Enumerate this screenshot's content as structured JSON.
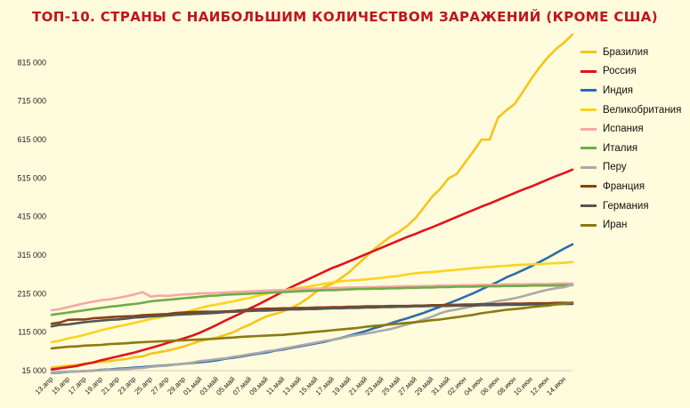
{
  "chart_data": {
    "type": "line",
    "title": "ТОП-10. СТРАНЫ С НАИБОЛЬШИМ КОЛИЧЕСТВОМ ЗАРАЖЕНИЙ (КРОМЕ США)",
    "xlabel": "",
    "ylabel": "",
    "ylim": [
      15000,
      885000
    ],
    "yticks": [
      15000,
      115000,
      215000,
      315000,
      415000,
      515000,
      615000,
      715000,
      815000
    ],
    "ytick_labels": [
      "15 000",
      "115 000",
      "215 000",
      "315 000",
      "415 000",
      "515 000",
      "615 000",
      "715 000",
      "815 000"
    ],
    "grid": false,
    "legend_position": "right",
    "x": [
      "13.апр",
      "14.апр",
      "15.апр",
      "16.апр",
      "17.апр",
      "18.апр",
      "19.апр",
      "20.апр",
      "21.апр",
      "22.апр",
      "23.апр",
      "24.апр",
      "25.апр",
      "26.апр",
      "27.апр",
      "28.апр",
      "29.апр",
      "30.апр",
      "01.май",
      "02.май",
      "03.май",
      "04.май",
      "05.май",
      "06.май",
      "07.май",
      "08.май",
      "09.май",
      "10.май",
      "11.май",
      "12.май",
      "13.май",
      "14.май",
      "15.май",
      "16.май",
      "17.май",
      "18.май",
      "19.май",
      "20.май",
      "21.май",
      "22.май",
      "23.май",
      "24.май",
      "25.май",
      "26.май",
      "27.май",
      "28.май",
      "29.май",
      "30.май",
      "31.май",
      "01.июн",
      "02.июн",
      "03.июн",
      "04.июн",
      "05.июн",
      "06.июн",
      "07.июн",
      "08.июн",
      "09.июн",
      "10.июн",
      "11.июн",
      "12.июн",
      "13.июн",
      "14.июн",
      "15.июн"
    ],
    "x_tick_labels": [
      "13.апр",
      "15.апр",
      "17.апр",
      "19.апр",
      "21.апр",
      "23.апр",
      "25.апр",
      "27.апр",
      "29.апр",
      "01.май",
      "03.май",
      "05.май",
      "07.май",
      "09.май",
      "11.май",
      "13.май",
      "15.май",
      "17.май",
      "19.май",
      "21.май",
      "23.май",
      "25.май",
      "27.май",
      "29.май",
      "31.май",
      "02.июн",
      "04.июн",
      "06.июн",
      "08.июн",
      "10.июн",
      "12.июн",
      "14.июн"
    ],
    "series": [
      {
        "name": "Бразилия",
        "color": "#f5c518",
        "values": [
          23000,
          25000,
          28000,
          30000,
          33000,
          36000,
          38000,
          40000,
          43000,
          45000,
          50000,
          52000,
          59000,
          63000,
          67000,
          72000,
          78000,
          85000,
          92000,
          97000,
          101000,
          108000,
          115000,
          126000,
          135000,
          146000,
          156000,
          162000,
          169000,
          178000,
          189000,
          203000,
          220000,
          233000,
          241000,
          255000,
          271000,
          291000,
          310000,
          330000,
          347000,
          363000,
          375000,
          391000,
          411000,
          438000,
          466000,
          487000,
          514000,
          526000,
          555000,
          584000,
          615000,
          615000,
          672000,
          691000,
          707000,
          739000,
          772000,
          802000,
          828000,
          850000,
          867000,
          888000
        ]
      },
      {
        "name": "Россия",
        "color": "#e0141b",
        "values": [
          18000,
          21000,
          24000,
          27000,
          32000,
          36000,
          42000,
          47000,
          52000,
          57000,
          62000,
          68000,
          74000,
          80000,
          87000,
          93000,
          99000,
          106000,
          114000,
          124000,
          134000,
          145000,
          155000,
          165000,
          177000,
          187000,
          198000,
          209000,
          221000,
          232000,
          242000,
          252000,
          262000,
          272000,
          282000,
          290000,
          299000,
          308000,
          317000,
          326000,
          335000,
          344000,
          353000,
          362000,
          370000,
          379000,
          387000,
          396000,
          405000,
          414000,
          423000,
          432000,
          441000,
          449000,
          458000,
          467000,
          476000,
          485000,
          493000,
          502000,
          511000,
          520000,
          528000,
          537000
        ]
      },
      {
        "name": "Индия",
        "color": "#2b6cb0",
        "values": [
          9000,
          10000,
          12000,
          13000,
          14000,
          15000,
          17000,
          18000,
          20000,
          21000,
          23000,
          24000,
          26000,
          28000,
          29000,
          31000,
          33000,
          35000,
          37000,
          39000,
          42000,
          46000,
          49000,
          52000,
          56000,
          59000,
          62000,
          67000,
          70000,
          74000,
          78000,
          82000,
          86000,
          90000,
          95000,
          100000,
          106000,
          112000,
          118000,
          125000,
          131000,
          138000,
          145000,
          151000,
          158000,
          165000,
          173000,
          181000,
          190000,
          198000,
          207000,
          216000,
          226000,
          236000,
          246000,
          257000,
          266000,
          276000,
          286000,
          297000,
          308000,
          320000,
          332000,
          343000
        ]
      },
      {
        "name": "Великобритания",
        "color": "#ffd21f",
        "values": [
          89000,
          93000,
          99000,
          103000,
          108000,
          114000,
          120000,
          125000,
          130000,
          134000,
          139000,
          144000,
          149000,
          153000,
          158000,
          162000,
          166000,
          172000,
          178000,
          183000,
          187000,
          191000,
          195000,
          200000,
          204000,
          210000,
          215000,
          219000,
          223000,
          227000,
          230000,
          233000,
          237000,
          241000,
          244000,
          247000,
          249000,
          250000,
          252000,
          254000,
          256000,
          259000,
          261000,
          265000,
          268000,
          270000,
          271000,
          273000,
          275000,
          277000,
          279000,
          281000,
          283000,
          284000,
          286000,
          287000,
          289000,
          290000,
          291000,
          292000,
          293000,
          294000,
          295000,
          297000
        ]
      },
      {
        "name": "Испания",
        "color": "#f4a8a8",
        "values": [
          172000,
          175000,
          180000,
          185000,
          190000,
          194000,
          198000,
          200000,
          204000,
          208000,
          213000,
          219000,
          207000,
          210000,
          209000,
          211000,
          213000,
          214000,
          216000,
          216000,
          217000,
          218000,
          219000,
          220000,
          221000,
          222000,
          223000,
          224000,
          224000,
          225000,
          226000,
          227000,
          228000,
          229000,
          230000,
          230000,
          231000,
          231000,
          232000,
          232000,
          233000,
          233000,
          234000,
          234000,
          234000,
          235000,
          235000,
          236000,
          236000,
          236000,
          237000,
          237000,
          238000,
          238000,
          238000,
          239000,
          239000,
          239000,
          240000,
          240000,
          240000,
          241000,
          241000,
          241000
        ]
      },
      {
        "name": "Италия",
        "color": "#6fac46",
        "values": [
          160000,
          163000,
          166000,
          169000,
          172000,
          175000,
          178000,
          181000,
          183000,
          186000,
          188000,
          191000,
          195000,
          197000,
          199000,
          201000,
          203000,
          205000,
          207000,
          209000,
          210000,
          212000,
          213000,
          214000,
          215000,
          216000,
          217000,
          218000,
          219000,
          220000,
          221000,
          222000,
          223000,
          224000,
          224000,
          225000,
          226000,
          227000,
          227000,
          228000,
          228000,
          229000,
          229000,
          230000,
          230000,
          231000,
          231000,
          232000,
          232000,
          233000,
          233000,
          233000,
          234000,
          234000,
          234000,
          235000,
          235000,
          235000,
          236000,
          236000,
          236000,
          236000,
          237000,
          237000
        ]
      },
      {
        "name": "Перу",
        "color": "#a9a9a9",
        "values": [
          10000,
          11000,
          12000,
          13000,
          14000,
          15000,
          16000,
          17000,
          18000,
          19000,
          21000,
          22000,
          25000,
          27000,
          28000,
          31000,
          33000,
          36000,
          40000,
          42000,
          45000,
          47000,
          51000,
          54000,
          58000,
          61000,
          65000,
          68000,
          72000,
          76000,
          80000,
          84000,
          88000,
          92000,
          95000,
          99000,
          104000,
          108000,
          111000,
          115000,
          119000,
          123000,
          129000,
          135000,
          141000,
          148000,
          155000,
          164000,
          170000,
          174000,
          178000,
          183000,
          187000,
          191000,
          196000,
          199000,
          203000,
          208000,
          214000,
          220000,
          225000,
          229000,
          232000,
          238000
        ]
      },
      {
        "name": "Франция",
        "color": "#8b4012",
        "values": [
          137000,
          140000,
          147000,
          148000,
          148000,
          151000,
          152000,
          154000,
          155000,
          156000,
          157000,
          159000,
          160000,
          161000,
          162000,
          165000,
          166000,
          167000,
          168000,
          168000,
          168000,
          169000,
          170000,
          172000,
          174000,
          175000,
          176000,
          176000,
          177000,
          177000,
          178000,
          178000,
          179000,
          179000,
          180000,
          180000,
          181000,
          181000,
          182000,
          182000,
          182000,
          183000,
          183000,
          183000,
          184000,
          184000,
          185000,
          185000,
          186000,
          186000,
          187000,
          187000,
          188000,
          188000,
          188000,
          189000,
          189000,
          189000,
          190000,
          190000,
          190000,
          191000,
          191000,
          191000
        ]
      },
      {
        "name": "Германия",
        "color": "#555555",
        "values": [
          130000,
          134000,
          135000,
          138000,
          141000,
          143000,
          145000,
          147000,
          148000,
          150000,
          153000,
          154000,
          156000,
          157000,
          158000,
          160000,
          161000,
          162000,
          163000,
          164000,
          165000,
          167000,
          168000,
          169000,
          170000,
          171000,
          171000,
          172000,
          173000,
          174000,
          174000,
          175000,
          175000,
          176000,
          177000,
          177000,
          178000,
          178000,
          179000,
          179000,
          180000,
          180000,
          181000,
          181000,
          182000,
          182000,
          183000,
          183000,
          183000,
          184000,
          184000,
          184000,
          185000,
          185000,
          185000,
          186000,
          186000,
          186000,
          187000,
          187000,
          187000,
          187000,
          188000,
          188000
        ]
      },
      {
        "name": "Иран",
        "color": "#8c7a10",
        "values": [
          73000,
          75000,
          77000,
          78000,
          80000,
          81000,
          82000,
          84000,
          85000,
          86000,
          88000,
          89000,
          90000,
          91000,
          92000,
          93000,
          94000,
          95000,
          96000,
          97000,
          98000,
          100000,
          101000,
          103000,
          104000,
          105000,
          106000,
          107000,
          108000,
          110000,
          112000,
          114000,
          116000,
          118000,
          120000,
          122000,
          124000,
          126000,
          129000,
          131000,
          133000,
          135000,
          137000,
          139000,
          141000,
          143000,
          146000,
          148000,
          151000,
          154000,
          157000,
          160000,
          164000,
          167000,
          170000,
          173000,
          175000,
          177000,
          180000,
          182000,
          184000,
          187000,
          189000,
          192000
        ]
      }
    ]
  }
}
